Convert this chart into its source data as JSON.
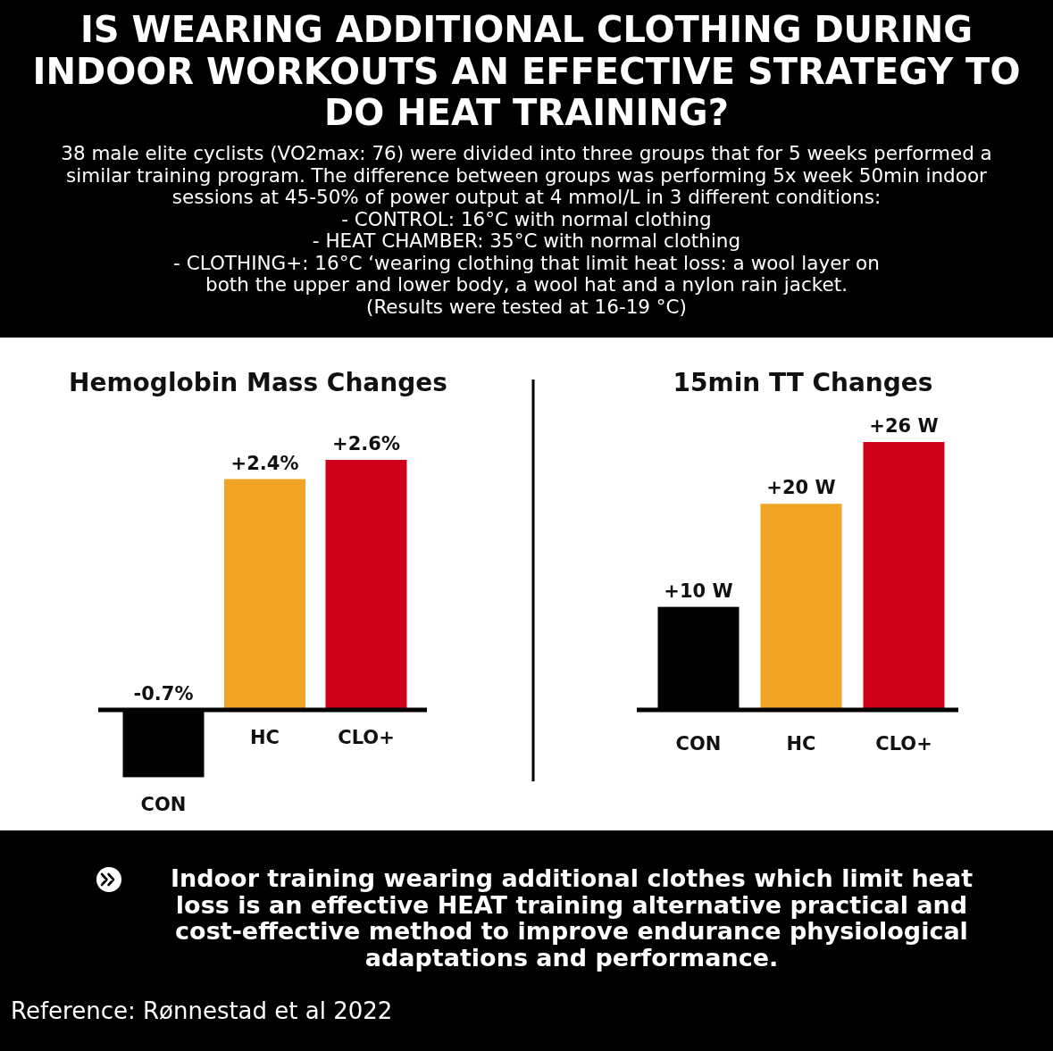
{
  "chart_data": [
    {
      "type": "other",
      "title": "IS WEARING ADDITIONAL CLOTHING DURING INDOOR WORKOUTS AN EFFECTIVE STRATEGY TO DO HEAT TRAINING?",
      "subtitle": "38 male elite cyclists (VO2max: 76) were divided into three groups that for 5 weeks performed a similar training program. The difference between groups was performing 5x week 50min indoor sessions at 45-50% of power output at 4 mmol/L in 3 different conditions:",
      "annotations": [
        "- CONTROL: 16°C with normal clothing",
        "- HEAT CHAMBER: 35°C with normal clothing",
        "- CLOTHING+: 16°C ‘wearing clothing that limit heat loss: a wool layer on both the upper and lower body, a wool hat and a nylon rain jacket.",
        "(Results were tested at 16-19 °C)"
      ]
    },
    {
      "type": "bar",
      "title": "Hemoglobin Mass Changes",
      "categories": [
        "CON",
        "HC",
        "CLO+"
      ],
      "values": [
        -0.7,
        2.4,
        2.6
      ],
      "colors": [
        "#000000",
        "#f2a425",
        "#cf0019"
      ],
      "value_labels": [
        "-0.7%",
        "+2.4%",
        "+2.6%"
      ]
    },
    {
      "type": "bar",
      "title": "15min TT Changes",
      "categories": [
        "CON",
        "HC",
        "CLO+"
      ],
      "values": [
        10,
        20,
        26
      ],
      "colors": [
        "#000000",
        "#f2a425",
        "#cf0019"
      ],
      "value_labels": [
        "+10 W",
        "+20 W",
        "+26 W"
      ]
    },
    {
      "type": "other",
      "annotations": [
        "Indoor training wearing additional clothes which limit heat loss is an effective HEAT training alternative practical and cost-effective method to improve endurance physiological adaptations and performance.",
        "Reference: Rønnestad et al 2022"
      ]
    }
  ]
}
